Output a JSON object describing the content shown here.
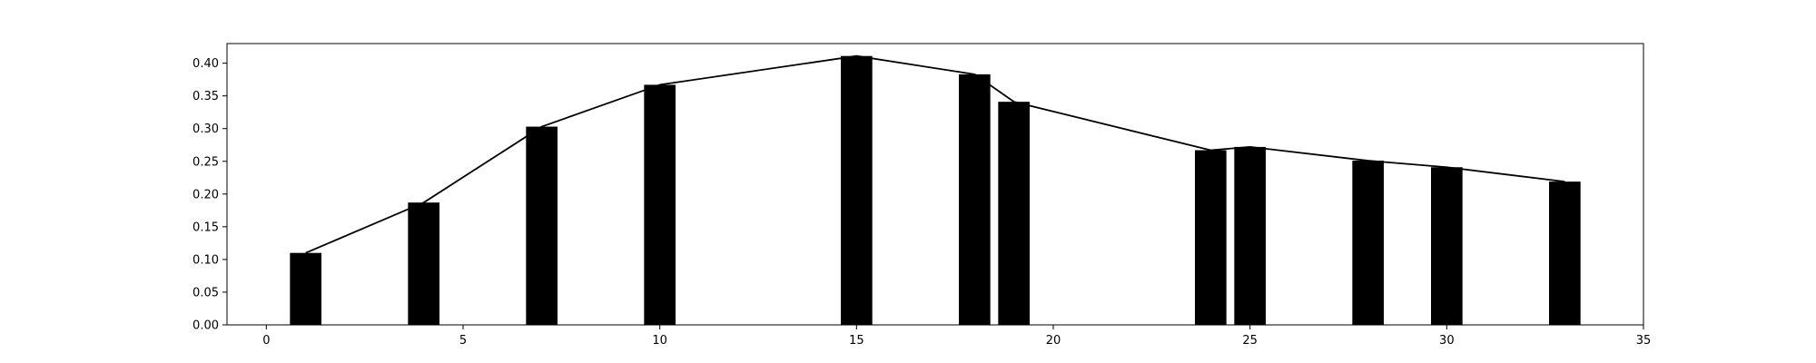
{
  "chart_data": {
    "type": "bar",
    "title": "",
    "xlabel": "",
    "ylabel": "",
    "xlim": [
      -1,
      35
    ],
    "ylim": [
      0,
      0.43
    ],
    "grid": false,
    "bar_width": 0.8,
    "bar_color": "#000000",
    "line_color": "#000000",
    "x_ticks": [
      0,
      5,
      10,
      15,
      20,
      25,
      30,
      35
    ],
    "x_tick_labels": [
      "0",
      "5",
      "10",
      "15",
      "20",
      "25",
      "30",
      "35"
    ],
    "y_ticks": [
      0,
      0.05,
      0.1,
      0.15,
      0.2,
      0.25,
      0.3,
      0.35,
      0.4
    ],
    "y_tick_labels": [
      "0.00",
      "0.05",
      "0.10",
      "0.15",
      "0.20",
      "0.25",
      "0.30",
      "0.35",
      "0.40"
    ],
    "series": [
      {
        "x": [
          1,
          4,
          7,
          10,
          15,
          18,
          19,
          24,
          25,
          28,
          30,
          33
        ],
        "values": [
          0.11,
          0.187,
          0.303,
          0.367,
          0.411,
          0.383,
          0.341,
          0.267,
          0.272,
          0.251,
          0.241,
          0.219
        ]
      }
    ]
  }
}
